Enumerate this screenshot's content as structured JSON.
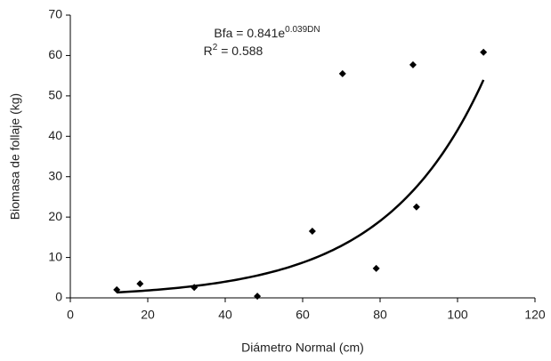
{
  "chart_data": {
    "type": "scatter",
    "x_label": "Diámetro Normal (cm)",
    "y_label": "Biomasa de follaje (kg)",
    "series": [
      {
        "color": "#000000",
        "x": [
          12,
          18,
          32,
          48.3,
          62.5,
          70.3,
          79,
          88.5,
          89.4,
          106.7
        ],
        "values": [
          2.0,
          3.5,
          2.6,
          0.4,
          16.5,
          55.5,
          7.3,
          57.7,
          22.5,
          60.8
        ]
      }
    ],
    "trendline": {
      "type": "exponential",
      "a": 0.841,
      "b": 0.039,
      "color": "#000000",
      "equation_base": "Bfa = 0.841e",
      "equation_exponent": "0.039DN",
      "r2_base": "R",
      "r2_exponent": "2",
      "r2_rest": " = 0.588"
    },
    "xlim": [
      0,
      120
    ],
    "xticks": [
      0,
      20,
      40,
      60,
      80,
      100,
      120
    ],
    "ylim": [
      0,
      70
    ],
    "yticks": [
      0,
      10,
      20,
      30,
      40,
      50,
      60,
      70
    ],
    "grid": false
  }
}
